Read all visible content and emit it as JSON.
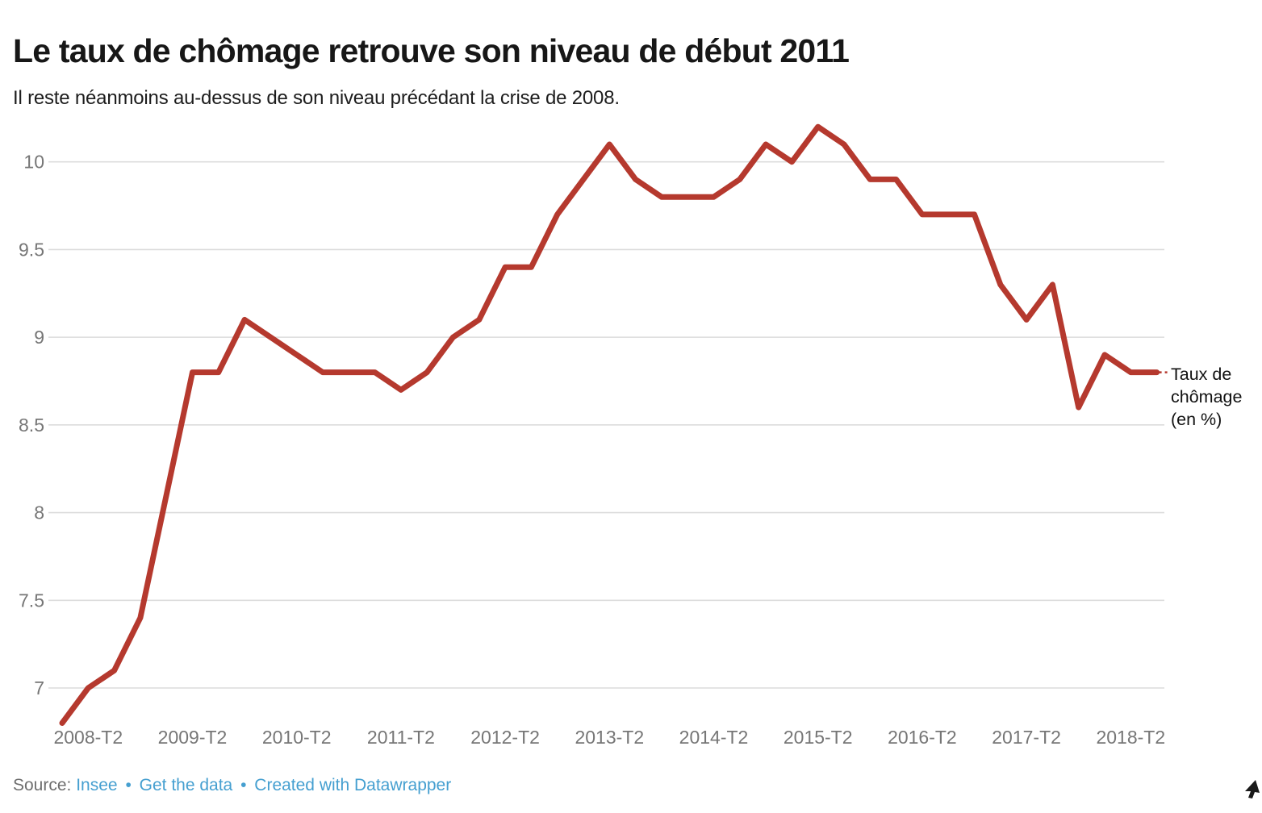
{
  "header": {
    "title": "Le taux de chômage retrouve son niveau de début 2011",
    "subtitle": "Il reste néanmoins au-dessus de son niveau précédant la crise de 2008."
  },
  "chart_data": {
    "type": "line",
    "title": "Le taux de chômage retrouve son niveau de début 2011",
    "series_label": "Taux de chômage (en %)",
    "x": [
      "2008-T1",
      "2008-T2",
      "2008-T3",
      "2008-T4",
      "2009-T1",
      "2009-T2",
      "2009-T3",
      "2009-T4",
      "2010-T1",
      "2010-T2",
      "2010-T3",
      "2010-T4",
      "2011-T1",
      "2011-T2",
      "2011-T3",
      "2011-T4",
      "2012-T1",
      "2012-T2",
      "2012-T3",
      "2012-T4",
      "2013-T1",
      "2013-T2",
      "2013-T3",
      "2013-T4",
      "2014-T1",
      "2014-T2",
      "2014-T3",
      "2014-T4",
      "2015-T1",
      "2015-T2",
      "2015-T3",
      "2015-T4",
      "2016-T1",
      "2016-T2",
      "2016-T3",
      "2016-T4",
      "2017-T1",
      "2017-T2",
      "2017-T3",
      "2017-T4",
      "2018-T1",
      "2018-T2",
      "2018-T3"
    ],
    "values": [
      6.8,
      7.0,
      7.1,
      7.4,
      8.1,
      8.8,
      8.8,
      9.1,
      9.0,
      8.9,
      8.8,
      8.8,
      8.8,
      8.7,
      8.8,
      9.0,
      9.1,
      9.4,
      9.4,
      9.7,
      9.9,
      10.1,
      9.9,
      9.8,
      9.8,
      9.8,
      9.9,
      10.1,
      10.0,
      10.2,
      10.1,
      9.9,
      9.9,
      9.7,
      9.7,
      9.7,
      9.3,
      9.1,
      9.3,
      8.6,
      8.9,
      8.8,
      8.8
    ],
    "x_tick_labels": [
      "2008-T2",
      "2009-T2",
      "2010-T2",
      "2011-T2",
      "2012-T2",
      "2013-T2",
      "2014-T2",
      "2015-T2",
      "2016-T2",
      "2017-T2",
      "2018-T2"
    ],
    "y_ticks": [
      7,
      7.5,
      8,
      8.5,
      9,
      9.5,
      10
    ],
    "ylim": [
      6.65,
      10.35
    ],
    "grid": true,
    "legend_position": "right-of-line-end",
    "line_color": "#b5392e",
    "grid_color": "#dcdcdc",
    "axis_text_color": "#767676"
  },
  "footer": {
    "source_label": "Source:",
    "source_link": "Insee",
    "separator": "•",
    "get_data_link": "Get the data",
    "created_link": "Created with Datawrapper"
  }
}
